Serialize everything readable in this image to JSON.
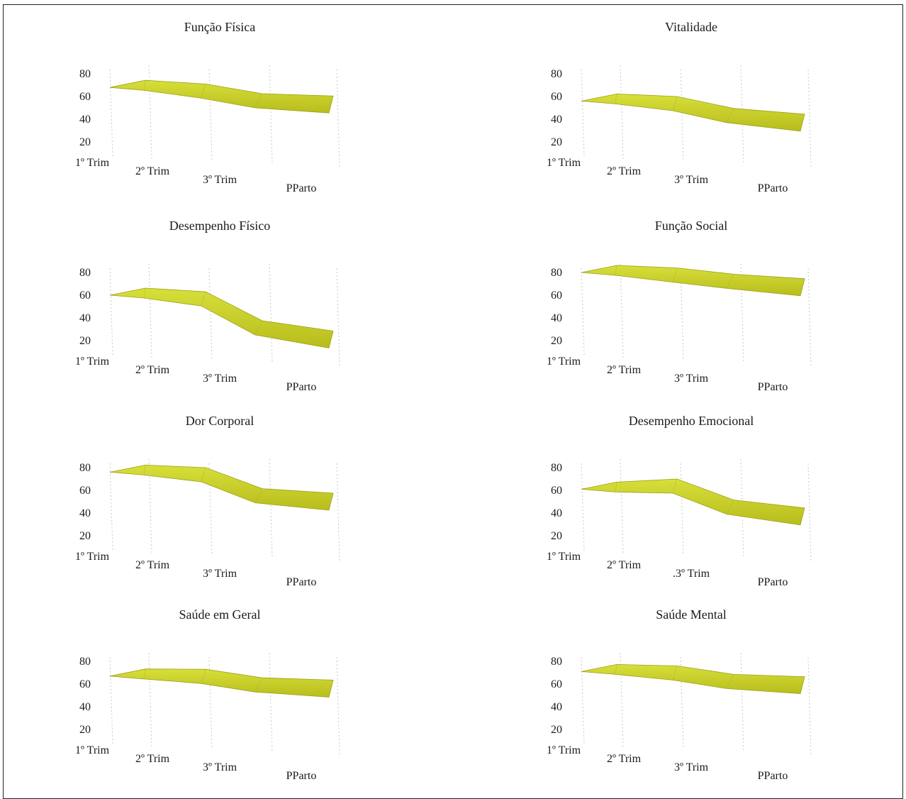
{
  "colors": {
    "surface_top": "#d7df3a",
    "surface_bottom": "#b8bd1c",
    "surface_edge": "#9ea018",
    "grid": "#c8c8c8"
  },
  "chart_data": [
    {
      "type": "area",
      "title": "Função Física",
      "categories": [
        "1º Trim",
        "2º Trim",
        "3º Trim",
        "PParto"
      ],
      "series": [
        {
          "values": [
            68,
            66,
            60,
            58
          ]
        }
      ],
      "ylim": [
        20,
        80
      ],
      "yticks": [
        "80",
        "60",
        "40",
        "20"
      ],
      "grid": true
    },
    {
      "type": "area",
      "title": "Vitalidade",
      "categories": [
        "1º Trim",
        "2º Trim",
        "3º Trim",
        "PParto"
      ],
      "series": [
        {
          "values": [
            56,
            55,
            47,
            42
          ]
        }
      ],
      "ylim": [
        20,
        80
      ],
      "yticks": [
        "80",
        "60",
        "40",
        "20"
      ],
      "grid": true
    },
    {
      "type": "area",
      "title": "Desempenho Físico",
      "categories": [
        "1º Trim",
        "2º Trim",
        "3º Trim",
        "PParto"
      ],
      "series": [
        {
          "values": [
            60,
            58,
            35,
            26
          ]
        }
      ],
      "ylim": [
        20,
        80
      ],
      "yticks": [
        "80",
        "60",
        "40",
        "20"
      ],
      "grid": true
    },
    {
      "type": "area",
      "title": "Função Social",
      "categories": [
        "1º Trim",
        "2º Trim",
        "3º Trim",
        "PParto"
      ],
      "series": [
        {
          "values": [
            80,
            79,
            76,
            72
          ]
        }
      ],
      "ylim": [
        20,
        80
      ],
      "yticks": [
        "80",
        "60",
        "40",
        "20"
      ],
      "grid": true
    },
    {
      "type": "area",
      "title": "Dor Corporal",
      "categories": [
        "1º Trim",
        "2º Trim",
        "3º Trim",
        "PParto"
      ],
      "series": [
        {
          "values": [
            76,
            75,
            59,
            55
          ]
        }
      ],
      "ylim": [
        20,
        80
      ],
      "yticks": [
        "80",
        "60",
        "40",
        "20"
      ],
      "grid": true
    },
    {
      "type": "area",
      "title": "Desempenho Emocional",
      "categories": [
        "1º Trim",
        "2º Trim",
        ".3º Trim",
        "PParto"
      ],
      "series": [
        {
          "values": [
            61,
            65,
            49,
            42
          ]
        }
      ],
      "ylim": [
        20,
        80
      ],
      "yticks": [
        "80",
        "60",
        "40",
        "20"
      ],
      "grid": true
    },
    {
      "type": "area",
      "title": "Saúde em Geral",
      "categories": [
        "1º Trim",
        "2º Trim",
        "3º Trim",
        "PParto"
      ],
      "series": [
        {
          "values": [
            67,
            68,
            63,
            61
          ]
        }
      ],
      "ylim": [
        20,
        80
      ],
      "yticks": [
        "80",
        "60",
        "40",
        "20"
      ],
      "grid": true
    },
    {
      "type": "area",
      "title": "Saúde Mental",
      "categories": [
        "1º Trim",
        "2º Trim",
        "3º Trim",
        "PParto"
      ],
      "series": [
        {
          "values": [
            71,
            71,
            66,
            64
          ]
        }
      ],
      "ylim": [
        20,
        80
      ],
      "yticks": [
        "80",
        "60",
        "40",
        "20"
      ],
      "grid": true
    }
  ]
}
